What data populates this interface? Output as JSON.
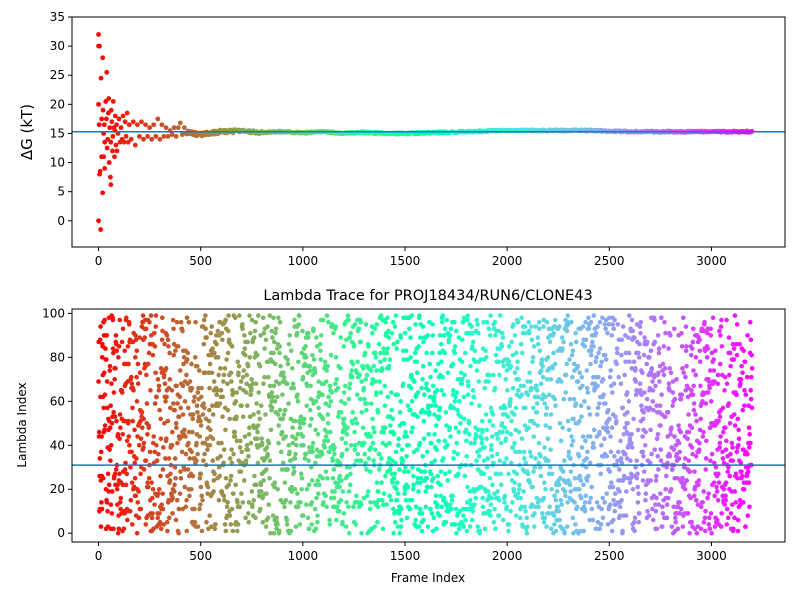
{
  "chart_data": [
    {
      "type": "scatter",
      "title": "",
      "xlabel": "",
      "ylabel": "ΔG (kT)",
      "xlim": [
        -130,
        3360
      ],
      "ylim": [
        -4.5,
        35
      ],
      "xticks": [
        "0",
        "500",
        "1000",
        "1500",
        "2000",
        "2500",
        "3000"
      ],
      "yticks": [
        "0",
        "5",
        "10",
        "15",
        "20",
        "25",
        "30",
        "35"
      ],
      "reference_line": {
        "y": 15.3,
        "color": "#1f77b4"
      },
      "colormap": "rainbow (red at frame 0 to violet at frame 3200)",
      "converged_value": 15.3,
      "n_frames": 3200,
      "series": [
        {
          "values_note": "free energy estimate per frame",
          "points": [
            [
              0,
              32
            ],
            [
              0,
              30
            ],
            [
              5,
              30
            ],
            [
              0,
              20
            ],
            [
              3,
              16.5
            ],
            [
              5,
              8
            ],
            [
              0,
              0
            ],
            [
              8,
              8.5
            ],
            [
              10,
              -1.5
            ],
            [
              12,
              24.5
            ],
            [
              15,
              17.5
            ],
            [
              15,
              11
            ],
            [
              20,
              28
            ],
            [
              20,
              4.8
            ],
            [
              22,
              19
            ],
            [
              25,
              15
            ],
            [
              25,
              11
            ],
            [
              28,
              16.5
            ],
            [
              30,
              9
            ],
            [
              30,
              13.5
            ],
            [
              35,
              20.5
            ],
            [
              38,
              17.5
            ],
            [
              40,
              25.5
            ],
            [
              42,
              12.5
            ],
            [
              45,
              14
            ],
            [
              48,
              18.5
            ],
            [
              50,
              21
            ],
            [
              52,
              10
            ],
            [
              55,
              16
            ],
            [
              58,
              7.5
            ],
            [
              60,
              13.5
            ],
            [
              60,
              6.2
            ],
            [
              62,
              19
            ],
            [
              65,
              17
            ],
            [
              68,
              12
            ],
            [
              70,
              14.5
            ],
            [
              72,
              20.5
            ],
            [
              75,
              16
            ],
            [
              78,
              11
            ],
            [
              80,
              15.5
            ],
            [
              82,
              18
            ],
            [
              85,
              13
            ],
            [
              88,
              16.5
            ],
            [
              90,
              12
            ],
            [
              95,
              15
            ],
            [
              100,
              17.5
            ],
            [
              105,
              13.5
            ],
            [
              110,
              16
            ],
            [
              115,
              14
            ],
            [
              120,
              18
            ],
            [
              125,
              13.5
            ],
            [
              130,
              17
            ],
            [
              135,
              14.5
            ],
            [
              140,
              18.5
            ],
            [
              145,
              13.5
            ],
            [
              150,
              16.5
            ],
            [
              160,
              14
            ],
            [
              170,
              17
            ],
            [
              180,
              13
            ],
            [
              190,
              16.5
            ],
            [
              200,
              14.5
            ],
            [
              210,
              17
            ],
            [
              220,
              14
            ],
            [
              230,
              16.5
            ],
            [
              240,
              14.5
            ],
            [
              250,
              16
            ],
            [
              260,
              14
            ],
            [
              270,
              16.5
            ],
            [
              280,
              14.5
            ],
            [
              290,
              17.5
            ],
            [
              300,
              14
            ],
            [
              310,
              16.5
            ],
            [
              320,
              14.5
            ],
            [
              330,
              16
            ],
            [
              340,
              14.5
            ],
            [
              350,
              15.5
            ],
            [
              360,
              14.8
            ],
            [
              370,
              16
            ],
            [
              380,
              14.5
            ],
            [
              390,
              16
            ],
            [
              400,
              16.8
            ],
            [
              410,
              14.8
            ],
            [
              420,
              16
            ]
          ],
          "trend": [
            [
              430,
              15.2
            ],
            [
              500,
              14.8
            ],
            [
              600,
              15.3
            ],
            [
              700,
              15.4
            ],
            [
              800,
              15.2
            ],
            [
              900,
              15.3
            ],
            [
              1000,
              15.1
            ],
            [
              1100,
              15.3
            ],
            [
              1200,
              15.0
            ],
            [
              1300,
              15.2
            ],
            [
              1400,
              15.0
            ],
            [
              1500,
              15.0
            ],
            [
              1600,
              15.1
            ],
            [
              1700,
              15.2
            ],
            [
              1800,
              15.3
            ],
            [
              1900,
              15.4
            ],
            [
              2000,
              15.5
            ],
            [
              2100,
              15.5
            ],
            [
              2200,
              15.5
            ],
            [
              2300,
              15.5
            ],
            [
              2400,
              15.5
            ],
            [
              2500,
              15.4
            ],
            [
              2600,
              15.3
            ],
            [
              2700,
              15.3
            ],
            [
              2800,
              15.3
            ],
            [
              2900,
              15.3
            ],
            [
              3000,
              15.3
            ],
            [
              3100,
              15.3
            ],
            [
              3200,
              15.3
            ]
          ]
        }
      ]
    },
    {
      "type": "scatter",
      "title": "Lambda Trace for PROJ18434/RUN6/CLONE43",
      "xlabel": "Frame Index",
      "ylabel": "Lambda Index",
      "xlim": [
        -130,
        3360
      ],
      "ylim": [
        -4,
        102
      ],
      "xticks": [
        "0",
        "500",
        "1000",
        "1500",
        "2000",
        "2500",
        "3000"
      ],
      "yticks": [
        "0",
        "20",
        "40",
        "60",
        "80",
        "100"
      ],
      "reference_line": {
        "y": 31,
        "color": "#1f77b4"
      },
      "colormap": "rainbow (red at frame 0 to violet at frame 3200)",
      "n_frames": 3200,
      "lambda_range": [
        0,
        99
      ],
      "series": [
        {
          "values_note": "lambda index visited at each frame, roughly uniform over 0–99 (about 3200 points)"
        }
      ]
    }
  ]
}
